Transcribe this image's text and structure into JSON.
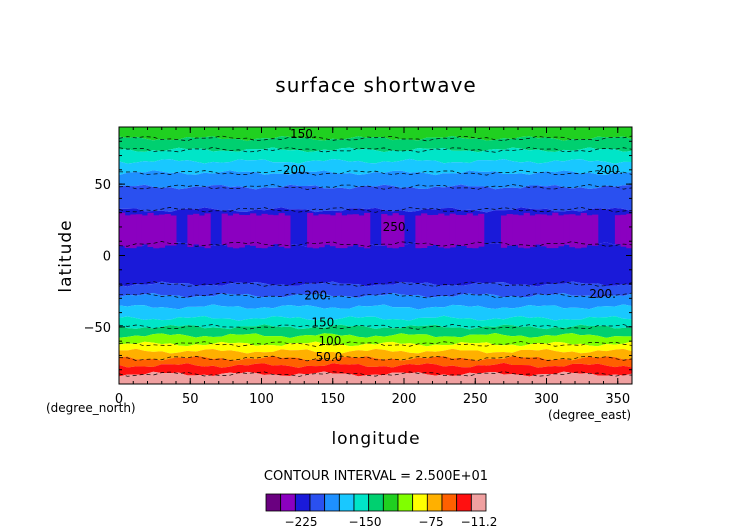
{
  "chart_data": {
    "type": "heatmap",
    "title": "surface shortwave",
    "xlabel": "longitude",
    "ylabel": "latitude",
    "x_unit": "(degree_east)",
    "y_unit": "(degree_north)",
    "xlim": [
      0,
      360
    ],
    "ylim": [
      -90,
      90
    ],
    "x_ticks": [
      "0",
      "50",
      "100",
      "150",
      "200",
      "250",
      "300",
      "350"
    ],
    "y_ticks": [
      "50",
      "0",
      "−50"
    ],
    "contour_interval_text": "CONTOUR INTERVAL = 2.500E+01",
    "colorbar_labels": [
      "−225",
      "−150",
      "−75",
      "−11.2"
    ],
    "colorbar_colors": [
      "#6a0080",
      "#8b00c0",
      "#1a1ad9",
      "#2a50f0",
      "#1e90ff",
      "#19c8ff",
      "#00e5c8",
      "#00d070",
      "#20d020",
      "#80ff00",
      "#ffff00",
      "#ffb000",
      "#ff6000",
      "#ff1010",
      "#f0a0a0"
    ],
    "contour_labels": [
      "150.",
      "200.",
      "200.",
      "250.",
      "200.",
      "200.",
      "150.",
      "100.",
      "50.0"
    ],
    "latitude_bands": [
      {
        "lat_from": 90,
        "lat_to": 82,
        "color": "#20d020"
      },
      {
        "lat_from": 82,
        "lat_to": 74,
        "color": "#00d070"
      },
      {
        "lat_from": 74,
        "lat_to": 66,
        "color": "#00e5c8"
      },
      {
        "lat_from": 66,
        "lat_to": 58,
        "color": "#19c8ff"
      },
      {
        "lat_from": 58,
        "lat_to": 48,
        "color": "#1e90ff"
      },
      {
        "lat_from": 48,
        "lat_to": 32,
        "color": "#2a50f0"
      },
      {
        "lat_from": 32,
        "lat_to": 8,
        "color": "#1a1ad9"
      },
      {
        "lat_from": 8,
        "lat_to": -20,
        "color": "#1a1ad9"
      },
      {
        "lat_from": -20,
        "lat_to": -28,
        "color": "#2a50f0"
      },
      {
        "lat_from": -28,
        "lat_to": -36,
        "color": "#1e90ff"
      },
      {
        "lat_from": -36,
        "lat_to": -44,
        "color": "#19c8ff"
      },
      {
        "lat_from": -44,
        "lat_to": -50,
        "color": "#00e5c8"
      },
      {
        "lat_from": -50,
        "lat_to": -56,
        "color": "#00d070"
      },
      {
        "lat_from": -56,
        "lat_to": -62,
        "color": "#80ff00"
      },
      {
        "lat_from": -62,
        "lat_to": -67,
        "color": "#ffff00"
      },
      {
        "lat_from": -67,
        "lat_to": -72,
        "color": "#ffb000"
      },
      {
        "lat_from": -72,
        "lat_to": -77,
        "color": "#ff6000"
      },
      {
        "lat_from": -77,
        "lat_to": -83,
        "color": "#ff1010"
      },
      {
        "lat_from": -83,
        "lat_to": -90,
        "color": "#f0a0a0"
      }
    ],
    "tropical_max_band": {
      "lat_from": 30,
      "lat_to": 8,
      "color": "#8b00c0"
    }
  }
}
